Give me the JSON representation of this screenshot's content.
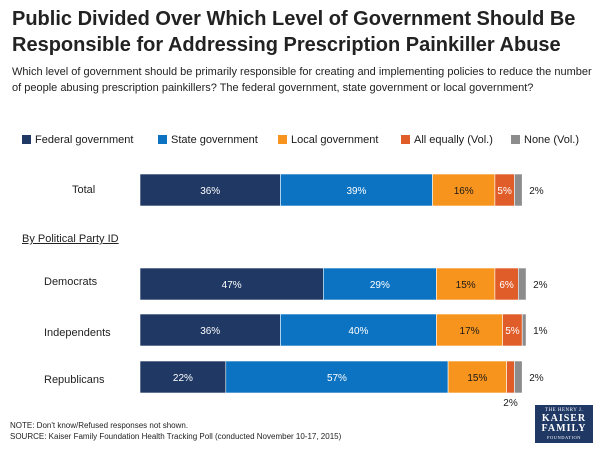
{
  "header": {
    "title": "Public Divided Over Which Level of Government Should Be Responsible for Addressing Prescription Painkiller Abuse",
    "subtitle": "Which level of government should be primarily responsible for creating and implementing policies to reduce the number of people abusing prescription painkillers? The federal government, state government or local government?"
  },
  "section_label": "By Political Party ID",
  "chart_data": {
    "type": "bar",
    "orientation": "horizontal",
    "stacked": true,
    "title": "Public Divided Over Which Level of Government Should Be Responsible for Addressing Prescription Painkiller Abuse",
    "xlabel": "",
    "ylabel": "",
    "xlim": [
      0,
      100
    ],
    "categories": [
      "Total",
      "Democrats",
      "Independents",
      "Republicans"
    ],
    "series": [
      {
        "name": "Federal government",
        "color": "#1f3864",
        "values": [
          36,
          47,
          36,
          22
        ],
        "labels": [
          "36%",
          "47%",
          "36%",
          "22%"
        ]
      },
      {
        "name": "State government",
        "color": "#0b73c1",
        "values": [
          39,
          29,
          40,
          57
        ],
        "labels": [
          "39%",
          "29%",
          "40%",
          "57%"
        ]
      },
      {
        "name": "Local government",
        "color": "#f7941d",
        "values": [
          16,
          15,
          17,
          15
        ],
        "labels": [
          "16%",
          "15%",
          "17%",
          "15%"
        ]
      },
      {
        "name": "All equally (Vol.)",
        "color": "#e05d2a",
        "values": [
          5,
          6,
          5,
          2
        ],
        "labels": [
          "5%",
          "6%",
          "5%",
          "2%"
        ]
      },
      {
        "name": "None (Vol.)",
        "color": "#8c8c8c",
        "values": [
          2,
          2,
          1,
          2
        ],
        "labels": [
          "2%",
          "2%",
          "1%",
          "2%"
        ]
      }
    ],
    "legend_position": "top",
    "grid": false
  },
  "footer": {
    "note": "NOTE: Don't know/Refused responses not shown.",
    "source": "SOURCE: Kaiser Family Foundation Health Tracking Poll (conducted November 10-17, 2015)"
  },
  "logo": {
    "line1": "THE HENRY J.",
    "line2": "KAISER",
    "line3": "FAMILY",
    "line4": "FOUNDATION"
  }
}
